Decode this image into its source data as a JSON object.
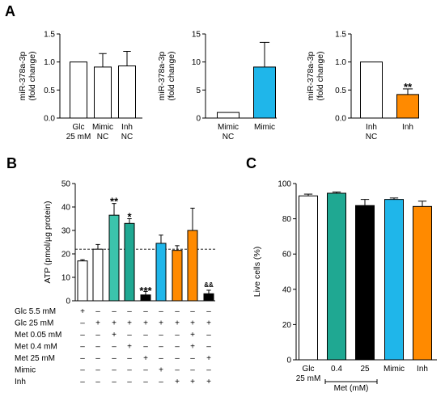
{
  "colors": {
    "white": "#ffffff",
    "cyan": "#1fb6ea",
    "orange": "#ff8a00",
    "teal": "#1fa892",
    "teal_light": "#3cc4ac",
    "black": "#000000",
    "axis": "#000000"
  },
  "chart_data": [
    {
      "id": "A1",
      "type": "bar",
      "panel_letter": "A",
      "ylabel": [
        "miR-378a-3p",
        "(fold change)"
      ],
      "ylim": [
        0,
        1.5
      ],
      "yticks": [
        "0.0",
        "0.5",
        "1.0",
        "1.5"
      ],
      "categories": [
        [
          "Glc",
          "25 mM"
        ],
        [
          "Mimic",
          "NC"
        ],
        [
          "Inh",
          "NC"
        ]
      ],
      "values": [
        1.0,
        0.91,
        0.93
      ],
      "errors": [
        0,
        0.24,
        0.26
      ],
      "bar_colors": [
        "#ffffff",
        "#ffffff",
        "#ffffff"
      ],
      "annotations": [
        "",
        "",
        ""
      ]
    },
    {
      "id": "A2",
      "type": "bar",
      "ylabel": [
        "miR-378a-3p",
        "(fold change)"
      ],
      "ylim": [
        0,
        15
      ],
      "yticks": [
        "0",
        "5",
        "10",
        "15"
      ],
      "categories": [
        [
          "Mimic",
          "NC"
        ],
        [
          "Mimic"
        ]
      ],
      "values": [
        1.0,
        9.1
      ],
      "errors": [
        0,
        4.4
      ],
      "bar_colors": [
        "#ffffff",
        "#1fb6ea"
      ],
      "annotations": [
        "",
        ""
      ]
    },
    {
      "id": "A3",
      "type": "bar",
      "ylabel": [
        "miR-378a-3p",
        "(fold change)"
      ],
      "ylim": [
        0,
        1.5
      ],
      "yticks": [
        "0.0",
        "0.5",
        "1.0",
        "1.5"
      ],
      "categories": [
        [
          "Inh",
          "NC"
        ],
        [
          "Inh"
        ]
      ],
      "values": [
        1.0,
        0.42
      ],
      "errors": [
        0,
        0.1
      ],
      "bar_colors": [
        "#ffffff",
        "#ff8a00"
      ],
      "annotations": [
        "",
        "**"
      ]
    },
    {
      "id": "B",
      "type": "bar",
      "panel_letter": "B",
      "ylabel": [
        "ATP (pmol/µg protein)"
      ],
      "ylim": [
        0,
        50
      ],
      "yticks": [
        "0",
        "10",
        "20",
        "30",
        "40",
        "50"
      ],
      "reference_line": 22,
      "values": [
        17,
        22,
        36.5,
        33,
        2.5,
        24.5,
        21.5,
        30,
        3
      ],
      "errors": [
        0.5,
        2,
        5,
        2,
        1.5,
        3.5,
        2,
        9.5,
        1.5
      ],
      "bar_colors": [
        "#ffffff",
        "#ffffff",
        "#3cc4ac",
        "#1fa892",
        "#000000",
        "#1fb6ea",
        "#ff8a00",
        "#ff8a00",
        "#000000"
      ],
      "annotations": [
        "",
        "",
        "**",
        "*",
        "***",
        "",
        "",
        "",
        "&&"
      ],
      "condition_rows": [
        {
          "label": "Glc 5.5 mM",
          "symbols": [
            "+",
            "–",
            "–",
            "–",
            "–",
            "–",
            "–",
            "–",
            "–"
          ]
        },
        {
          "label": "Glc 25 mM",
          "symbols": [
            "–",
            "+",
            "+",
            "+",
            "+",
            "+",
            "+",
            "+",
            "+"
          ]
        },
        {
          "label": "Met 0.05 mM",
          "symbols": [
            "–",
            "–",
            "+",
            "–",
            "–",
            "–",
            "–",
            "+",
            "–"
          ]
        },
        {
          "label": "Met 0.4 mM",
          "symbols": [
            "–",
            "–",
            "–",
            "+",
            "–",
            "–",
            "–",
            "+",
            "–"
          ]
        },
        {
          "label": "Met 25 mM",
          "symbols": [
            "–",
            "–",
            "–",
            "–",
            "+",
            "–",
            "–",
            "–",
            "+"
          ]
        },
        {
          "label": "Mimic",
          "symbols": [
            "–",
            "–",
            "–",
            "–",
            "–",
            "+",
            "–",
            "–",
            "–"
          ]
        },
        {
          "label": "Inh",
          "symbols": [
            "–",
            "–",
            "–",
            "–",
            "–",
            "–",
            "+",
            "+",
            "+"
          ]
        }
      ]
    },
    {
      "id": "C",
      "type": "bar",
      "panel_letter": "C",
      "ylabel": [
        "Live cells (%)"
      ],
      "ylim": [
        0,
        100
      ],
      "yticks": [
        "0",
        "20",
        "40",
        "60",
        "80",
        "100"
      ],
      "categories": [
        [
          "Glc",
          "25 mM"
        ],
        [
          "0.4"
        ],
        [
          "25"
        ],
        [
          "Mimic"
        ],
        [
          "Inh"
        ]
      ],
      "values": [
        93,
        94.5,
        87.5,
        91,
        87
      ],
      "errors": [
        1,
        0.7,
        3.5,
        0.8,
        3
      ],
      "bar_colors": [
        "#ffffff",
        "#1fa892",
        "#000000",
        "#1fb6ea",
        "#ff8a00"
      ],
      "annotations": [
        "",
        "",
        "",
        "",
        ""
      ],
      "group_label": "Met (mM)"
    }
  ]
}
